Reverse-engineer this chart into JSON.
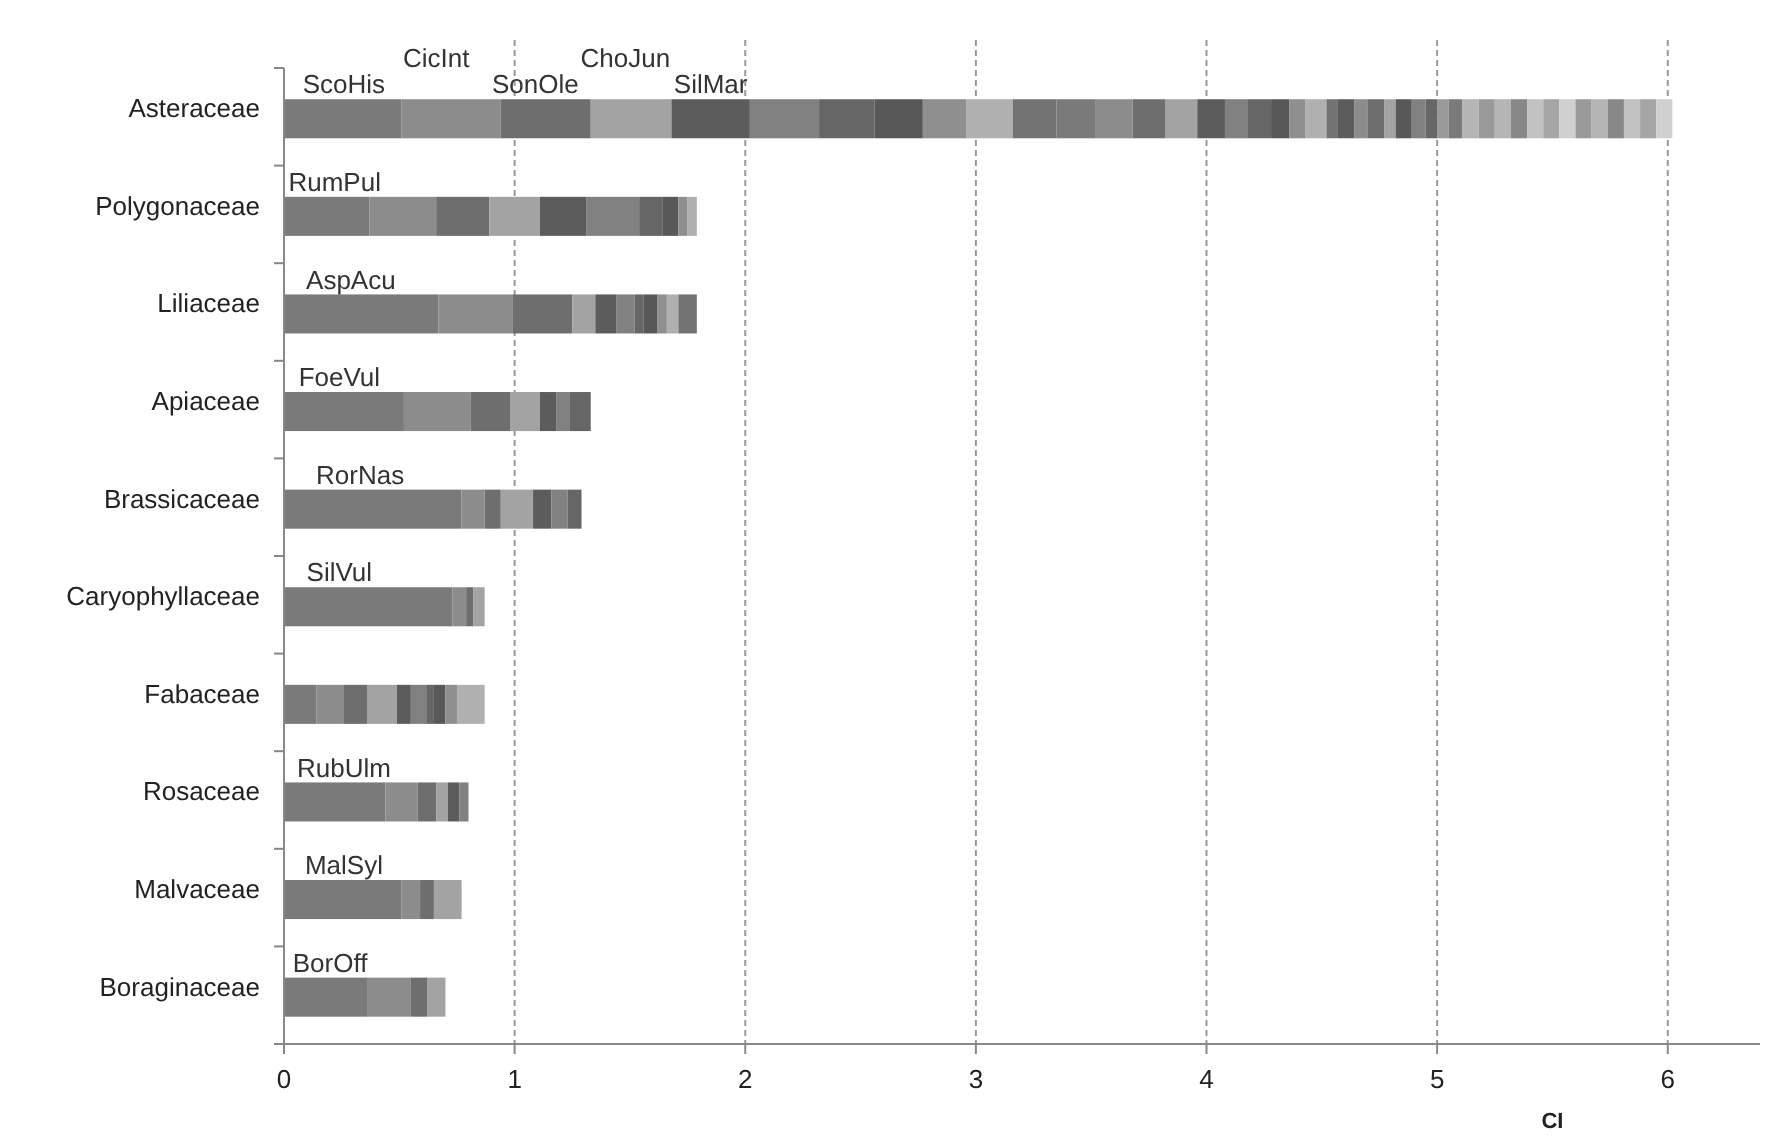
{
  "chart_data": {
    "type": "bar",
    "orientation": "horizontal",
    "stacked": true,
    "grid": "x",
    "xlabel": "CI",
    "xlim": [
      0,
      6.4
    ],
    "xticks": [
      0,
      1,
      2,
      3,
      4,
      5,
      6
    ],
    "categories": [
      "Asteraceae",
      "Polygonaceae",
      "Liliaceae",
      "Apiaceae",
      "Brassicaceae",
      "Caryophyllaceae",
      "Fabaceae",
      "Rosaceae",
      "Malvaceae",
      "Boraginaceae"
    ],
    "annotations": [
      {
        "text": "ScoHis",
        "x": 0.26,
        "y": "Asteraceae"
      },
      {
        "text": "CicInt",
        "x": 0.66,
        "y": "Asteraceae"
      },
      {
        "text": "SonOle",
        "x": 1.09,
        "y": "Asteraceae"
      },
      {
        "text": "ChoJun",
        "x": 1.48,
        "y": "Asteraceae"
      },
      {
        "text": "SilMar",
        "x": 1.85,
        "y": "Asteraceae"
      },
      {
        "text": "RumPul",
        "x": 0.22,
        "y": "Polygonaceae"
      },
      {
        "text": "AspAcu",
        "x": 0.29,
        "y": "Liliaceae"
      },
      {
        "text": "FoeVul",
        "x": 0.24,
        "y": "Apiaceae"
      },
      {
        "text": "RorNas",
        "x": 0.33,
        "y": "Brassicaceae"
      },
      {
        "text": "SilVul",
        "x": 0.24,
        "y": "Caryophyllaceae"
      },
      {
        "text": "RubUlm",
        "x": 0.26,
        "y": "Rosaceae"
      },
      {
        "text": "MalSyl",
        "x": 0.26,
        "y": "Malvaceae"
      },
      {
        "text": "BorOff",
        "x": 0.2,
        "y": "Boraginaceae"
      }
    ],
    "series": [
      {
        "color": "#7a7a7a",
        "values": [
          0.51,
          0.37,
          0.67,
          0.52,
          0.77,
          0.73,
          0.14,
          0.44,
          0.51,
          0.36
        ]
      },
      {
        "color": "#8c8c8c",
        "values": [
          0.43,
          0.29,
          0.32,
          0.29,
          0.1,
          0.06,
          0.12,
          0.14,
          0.08,
          0.19
        ]
      },
      {
        "color": "#6e6e6e",
        "values": [
          0.39,
          0.23,
          0.26,
          0.17,
          0.07,
          0.03,
          0.1,
          0.08,
          0.06,
          0.07
        ]
      },
      {
        "color": "#a3a3a3",
        "values": [
          0.35,
          0.22,
          0.1,
          0.13,
          0.14,
          0.05,
          0.13,
          0.05,
          0.12,
          0.08
        ]
      },
      {
        "color": "#5c5c5c",
        "values": [
          0.34,
          0.2,
          0.09,
          0.07,
          0.08,
          null,
          0.06,
          0.05,
          null,
          null
        ]
      },
      {
        "color": "#818181",
        "values": [
          0.3,
          0.23,
          0.08,
          0.06,
          0.07,
          null,
          0.07,
          0.04,
          null,
          null
        ]
      },
      {
        "color": "#666666",
        "values": [
          0.24,
          0.1,
          0.04,
          0.09,
          0.06,
          null,
          0.03,
          null,
          null,
          null
        ]
      },
      {
        "color": "#585858",
        "values": [
          0.21,
          0.07,
          0.06,
          null,
          null,
          null,
          0.05,
          null,
          null,
          null
        ]
      },
      {
        "color": "#8f8f8f",
        "values": [
          0.19,
          0.04,
          0.04,
          null,
          null,
          null,
          0.05,
          null,
          null,
          null
        ]
      },
      {
        "color": "#b0b0b0",
        "values": [
          0.2,
          0.04,
          0.05,
          null,
          null,
          null,
          0.12,
          null,
          null,
          null
        ]
      },
      {
        "color": "#737373",
        "values": [
          0.19,
          null,
          0.08,
          null,
          null,
          null,
          null,
          null,
          null,
          null
        ]
      },
      {
        "color": "#7a7a7a",
        "values": [
          0.17,
          null,
          null,
          null,
          null,
          null,
          null,
          null,
          null,
          null
        ]
      },
      {
        "color": "#8c8c8c",
        "values": [
          0.16,
          null,
          null,
          null,
          null,
          null,
          null,
          null,
          null,
          null
        ]
      },
      {
        "color": "#6e6e6e",
        "values": [
          0.14,
          null,
          null,
          null,
          null,
          null,
          null,
          null,
          null,
          null
        ]
      },
      {
        "color": "#a3a3a3",
        "values": [
          0.14,
          null,
          null,
          null,
          null,
          null,
          null,
          null,
          null,
          null
        ]
      },
      {
        "color": "#5c5c5c",
        "values": [
          0.12,
          null,
          null,
          null,
          null,
          null,
          null,
          null,
          null,
          null
        ]
      },
      {
        "color": "#818181",
        "values": [
          0.1,
          null,
          null,
          null,
          null,
          null,
          null,
          null,
          null,
          null
        ]
      },
      {
        "color": "#666666",
        "values": [
          0.1,
          null,
          null,
          null,
          null,
          null,
          null,
          null,
          null,
          null
        ]
      },
      {
        "color": "#585858",
        "values": [
          0.08,
          null,
          null,
          null,
          null,
          null,
          null,
          null,
          null,
          null
        ]
      },
      {
        "color": "#8f8f8f",
        "values": [
          0.07,
          null,
          null,
          null,
          null,
          null,
          null,
          null,
          null,
          null
        ]
      },
      {
        "color": "#b0b0b0",
        "values": [
          0.09,
          null,
          null,
          null,
          null,
          null,
          null,
          null,
          null,
          null
        ]
      },
      {
        "color": "#737373",
        "values": [
          0.05,
          null,
          null,
          null,
          null,
          null,
          null,
          null,
          null,
          null
        ]
      },
      {
        "color": "#5c5c5c",
        "values": [
          0.07,
          null,
          null,
          null,
          null,
          null,
          null,
          null,
          null,
          null
        ]
      },
      {
        "color": "#8c8c8c",
        "values": [
          0.06,
          null,
          null,
          null,
          null,
          null,
          null,
          null,
          null,
          null
        ]
      },
      {
        "color": "#6e6e6e",
        "values": [
          0.07,
          null,
          null,
          null,
          null,
          null,
          null,
          null,
          null,
          null
        ]
      },
      {
        "color": "#a3a3a3",
        "values": [
          0.05,
          null,
          null,
          null,
          null,
          null,
          null,
          null,
          null,
          null
        ]
      },
      {
        "color": "#585858",
        "values": [
          0.07,
          null,
          null,
          null,
          null,
          null,
          null,
          null,
          null,
          null
        ]
      },
      {
        "color": "#818181",
        "values": [
          0.06,
          null,
          null,
          null,
          null,
          null,
          null,
          null,
          null,
          null
        ]
      },
      {
        "color": "#666666",
        "values": [
          0.05,
          null,
          null,
          null,
          null,
          null,
          null,
          null,
          null,
          null
        ]
      },
      {
        "color": "#9a9a9a",
        "values": [
          0.05,
          null,
          null,
          null,
          null,
          null,
          null,
          null,
          null,
          null
        ]
      },
      {
        "color": "#7a7a7a",
        "values": [
          0.06,
          null,
          null,
          null,
          null,
          null,
          null,
          null,
          null,
          null
        ]
      },
      {
        "color": "#b5b5b5",
        "values": [
          0.07,
          null,
          null,
          null,
          null,
          null,
          null,
          null,
          null,
          null
        ]
      },
      {
        "color": "#9a9a9a",
        "values": [
          0.07,
          null,
          null,
          null,
          null,
          null,
          null,
          null,
          null,
          null
        ]
      },
      {
        "color": "#b5b5b5",
        "values": [
          0.07,
          null,
          null,
          null,
          null,
          null,
          null,
          null,
          null,
          null
        ]
      },
      {
        "color": "#888888",
        "values": [
          0.07,
          null,
          null,
          null,
          null,
          null,
          null,
          null,
          null,
          null
        ]
      },
      {
        "color": "#c2c2c2",
        "values": [
          0.07,
          null,
          null,
          null,
          null,
          null,
          null,
          null,
          null,
          null
        ]
      },
      {
        "color": "#a5a5a5",
        "values": [
          0.07,
          null,
          null,
          null,
          null,
          null,
          null,
          null,
          null,
          null
        ]
      },
      {
        "color": "#d0d0d0",
        "values": [
          0.07,
          null,
          null,
          null,
          null,
          null,
          null,
          null,
          null,
          null
        ]
      },
      {
        "color": "#9a9a9a",
        "values": [
          0.07,
          null,
          null,
          null,
          null,
          null,
          null,
          null,
          null,
          null
        ]
      },
      {
        "color": "#b5b5b5",
        "values": [
          0.07,
          null,
          null,
          null,
          null,
          null,
          null,
          null,
          null,
          null
        ]
      },
      {
        "color": "#888888",
        "values": [
          0.07,
          null,
          null,
          null,
          null,
          null,
          null,
          null,
          null,
          null
        ]
      },
      {
        "color": "#c2c2c2",
        "values": [
          0.07,
          null,
          null,
          null,
          null,
          null,
          null,
          null,
          null,
          null
        ]
      },
      {
        "color": "#a5a5a5",
        "values": [
          0.07,
          null,
          null,
          null,
          null,
          null,
          null,
          null,
          null,
          null
        ]
      },
      {
        "color": "#d0d0d0",
        "values": [
          0.07,
          null,
          null,
          null,
          null,
          null,
          null,
          null,
          null,
          null
        ]
      }
    ]
  }
}
